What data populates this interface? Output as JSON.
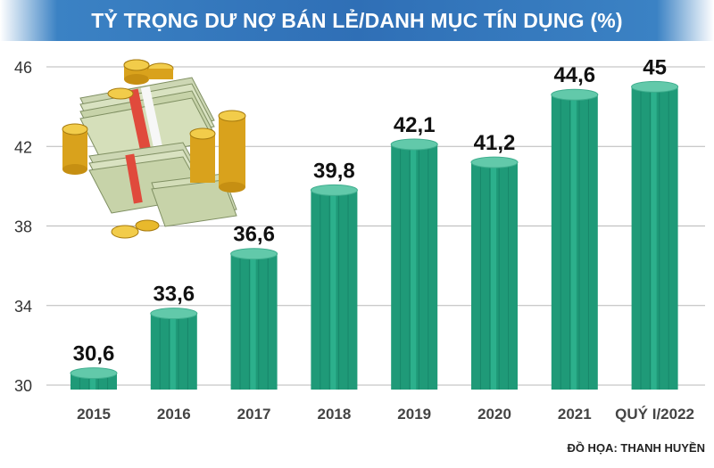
{
  "title": "TỶ TRỌNG DƯ NỢ BÁN LẺ/DANH MỤC TÍN DỤNG (%)",
  "credit": "ĐỒ HỌA: THANH HUYỀN",
  "colors": {
    "title_bg": "#2f6fb6",
    "bar": "#1f9a78",
    "bar_top": "#62c9aa",
    "grid": "#b9b9b9"
  },
  "chart_data": {
    "type": "bar",
    "title": "TỶ TRỌNG DƯ NỢ BÁN LẺ/DANH MỤC TÍN DỤNG (%)",
    "xlabel": "",
    "ylabel": "",
    "categories": [
      "2015",
      "2016",
      "2017",
      "2018",
      "2019",
      "2020",
      "2021",
      "QUÝ I/2022"
    ],
    "values": [
      30.6,
      33.6,
      36.6,
      39.8,
      42.1,
      41.2,
      44.6,
      45
    ],
    "value_labels": [
      "30,6",
      "33,6",
      "36,6",
      "39,8",
      "42,1",
      "41,2",
      "44,6",
      "45"
    ],
    "ylim": [
      30,
      46
    ],
    "yticks": [
      30,
      34,
      38,
      42,
      46
    ],
    "grid": true,
    "legend": "none"
  },
  "illustration": "money-stack-and-gold-coins"
}
